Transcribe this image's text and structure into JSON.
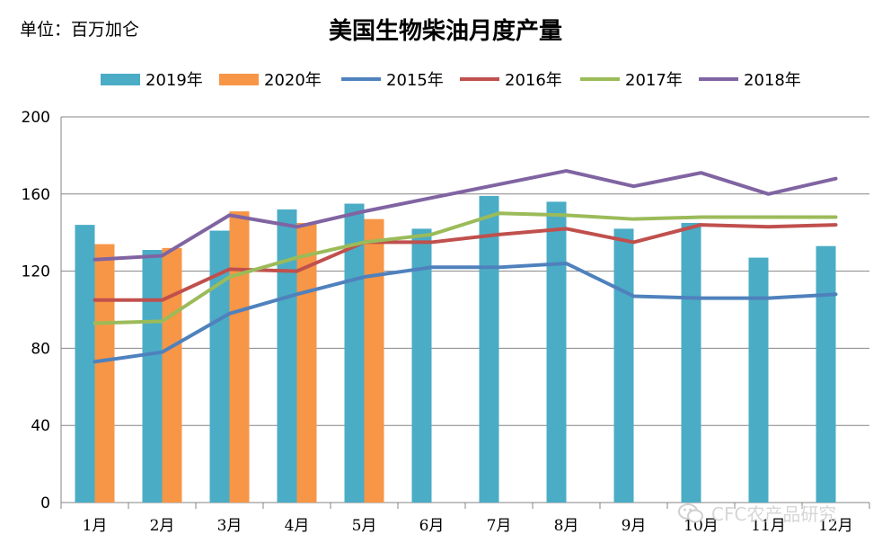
{
  "unit_label": "单位：百万加仑",
  "watermark": {
    "text": "CFC农产品研究",
    "icon": "wechat-icon"
  },
  "chart_data": {
    "type": "bar",
    "title": "美国生物柴油月度产量",
    "xlabel": "",
    "ylabel": "",
    "ylim": [
      0,
      200
    ],
    "yticks": [
      0,
      40,
      80,
      120,
      160,
      200
    ],
    "grid": true,
    "legend_placement": "top",
    "categories": [
      "1月",
      "2月",
      "3月",
      "4月",
      "5月",
      "6月",
      "7月",
      "8月",
      "9月",
      "10月",
      "11月",
      "12月"
    ],
    "series": [
      {
        "name": "2019年",
        "type": "bar",
        "color": "#4bacc6",
        "values": [
          144,
          131,
          141,
          152,
          155,
          142,
          159,
          156,
          142,
          145,
          127,
          133
        ]
      },
      {
        "name": "2020年",
        "type": "bar",
        "color": "#f79646",
        "values": [
          134,
          132,
          151,
          145,
          147,
          null,
          null,
          null,
          null,
          null,
          null,
          null
        ]
      },
      {
        "name": "2015年",
        "type": "line",
        "color": "#4f81bd",
        "values": [
          73,
          78,
          98,
          108,
          117,
          122,
          122,
          124,
          107,
          106,
          106,
          108
        ]
      },
      {
        "name": "2016年",
        "type": "line",
        "color": "#c0504d",
        "values": [
          105,
          105,
          121,
          120,
          135,
          135,
          139,
          142,
          135,
          144,
          143,
          144
        ]
      },
      {
        "name": "2017年",
        "type": "line",
        "color": "#9bbb59",
        "values": [
          93,
          94,
          117,
          127,
          135,
          139,
          150,
          149,
          147,
          148,
          148,
          148
        ]
      },
      {
        "name": "2018年",
        "type": "line",
        "color": "#8064a2",
        "values": [
          126,
          128,
          149,
          143,
          151,
          158,
          165,
          172,
          164,
          171,
          160,
          168
        ]
      }
    ]
  }
}
